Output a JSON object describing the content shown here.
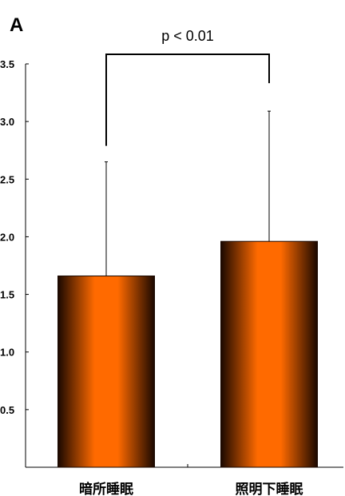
{
  "panel_label": "A",
  "significance": {
    "label": "p < 0.01",
    "between": [
      0,
      1
    ]
  },
  "colors": {
    "bar_center": "#ff6a00",
    "bar_edge": "#1a0800",
    "axis": "#000000"
  },
  "chart_data": {
    "type": "bar",
    "categories": [
      "暗所睡眠",
      "照明下睡眠"
    ],
    "values": [
      1.66,
      1.96
    ],
    "error_upper": [
      0.99,
      1.13
    ],
    "ylim": [
      0,
      3.5
    ],
    "yticks": [
      0.5,
      1.0,
      1.5,
      2.0,
      2.5,
      3.0,
      3.5
    ],
    "ytick_labels": [
      "0.5",
      "1.0",
      "1.5",
      "2.0",
      "2.5",
      "3.0",
      "3.5"
    ],
    "xlabel": "",
    "ylabel": "",
    "title": "",
    "grid": false,
    "legend": "none"
  }
}
